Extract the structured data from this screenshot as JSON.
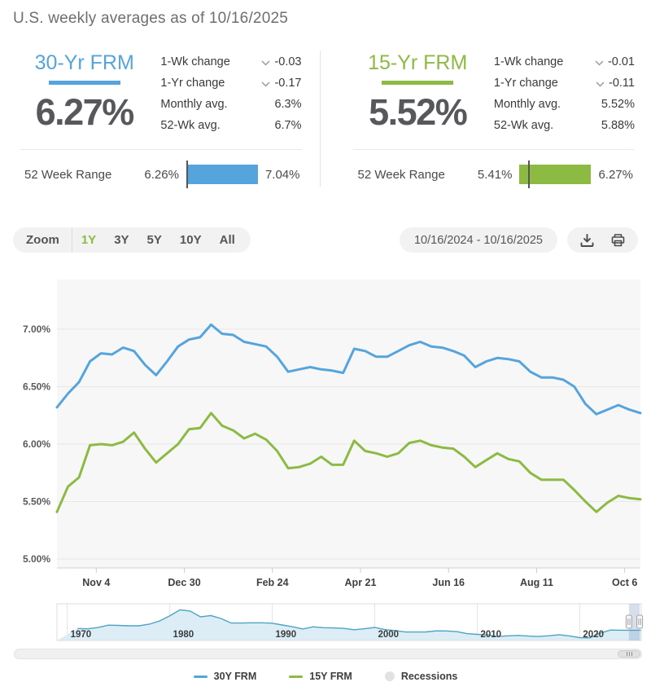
{
  "title": "U.S. weekly averages as of 10/16/2025",
  "cards": [
    {
      "name": "30-Yr FRM",
      "color": "#55A5DC",
      "rate": "6.27%",
      "stats": [
        {
          "label": "1-Wk change",
          "direction": "down",
          "value": "-0.03"
        },
        {
          "label": "1-Yr change",
          "direction": "down",
          "value": "-0.17"
        },
        {
          "label": "Monthly avg.",
          "value": "6.3%"
        },
        {
          "label": "52-Wk avg.",
          "value": "6.7%"
        }
      ],
      "range": {
        "label": "52 Week Range",
        "low_label": "6.26%",
        "high_label": "7.04%",
        "low": 6.26,
        "high": 7.04,
        "current": 6.27
      }
    },
    {
      "name": "15-Yr FRM",
      "color": "#8CBA43",
      "rate": "5.52%",
      "stats": [
        {
          "label": "1-Wk change",
          "direction": "down",
          "value": "-0.01"
        },
        {
          "label": "1-Yr change",
          "direction": "down",
          "value": "-0.11"
        },
        {
          "label": "Monthly avg.",
          "value": "5.52%"
        },
        {
          "label": "52-Wk avg.",
          "value": "5.88%"
        }
      ],
      "range": {
        "label": "52 Week Range",
        "low_label": "5.41%",
        "high_label": "6.27%",
        "low": 5.41,
        "high": 6.27,
        "current": 5.52
      }
    }
  ],
  "toolbar": {
    "zoom_label": "Zoom",
    "ranges": [
      {
        "label": "1Y",
        "active": true
      },
      {
        "label": "3Y",
        "active": false
      },
      {
        "label": "5Y",
        "active": false
      },
      {
        "label": "10Y",
        "active": false
      },
      {
        "label": "All",
        "active": false
      }
    ],
    "date_range": "10/16/2024 - 10/16/2025"
  },
  "chart_data": {
    "type": "line",
    "x_start": "2024-10-10",
    "x_end": "2025-10-16",
    "step_days": 7,
    "ylim": [
      5.0,
      7.25
    ],
    "y_ticks": [
      7.0,
      6.5,
      6.0,
      5.5,
      5.0
    ],
    "x_ticks": [
      {
        "label": "Nov 4",
        "date": "2024-11-04"
      },
      {
        "label": "Dec 30",
        "date": "2024-12-30"
      },
      {
        "label": "Feb 24",
        "date": "2025-02-24"
      },
      {
        "label": "Apr 21",
        "date": "2025-04-21"
      },
      {
        "label": "Jun 16",
        "date": "2025-06-16"
      },
      {
        "label": "Aug 11",
        "date": "2025-08-11"
      },
      {
        "label": "Oct 6",
        "date": "2025-10-06"
      }
    ],
    "series": [
      {
        "name": "30Y FRM",
        "color": "#55A5DC",
        "values": [
          6.32,
          6.44,
          6.54,
          6.72,
          6.79,
          6.78,
          6.84,
          6.81,
          6.69,
          6.6,
          6.72,
          6.85,
          6.91,
          6.93,
          7.04,
          6.96,
          6.95,
          6.89,
          6.87,
          6.85,
          6.76,
          6.63,
          6.65,
          6.67,
          6.65,
          6.64,
          6.62,
          6.83,
          6.81,
          6.76,
          6.76,
          6.81,
          6.86,
          6.89,
          6.85,
          6.84,
          6.81,
          6.77,
          6.67,
          6.72,
          6.75,
          6.74,
          6.72,
          6.63,
          6.58,
          6.58,
          6.56,
          6.5,
          6.35,
          6.26,
          6.3,
          6.34,
          6.3,
          6.27
        ]
      },
      {
        "name": "15Y FRM",
        "color": "#8CBA43",
        "values": [
          5.41,
          5.63,
          5.71,
          5.99,
          6.0,
          5.99,
          6.02,
          6.1,
          5.96,
          5.84,
          5.92,
          6.0,
          6.13,
          6.14,
          6.27,
          6.16,
          6.12,
          6.05,
          6.09,
          6.04,
          5.94,
          5.79,
          5.8,
          5.83,
          5.89,
          5.82,
          5.82,
          6.03,
          5.94,
          5.92,
          5.89,
          5.92,
          6.01,
          6.03,
          5.99,
          5.97,
          5.96,
          5.89,
          5.8,
          5.86,
          5.92,
          5.87,
          5.85,
          5.75,
          5.69,
          5.69,
          5.69,
          5.6,
          5.5,
          5.41,
          5.49,
          5.55,
          5.53,
          5.52
        ]
      }
    ]
  },
  "navigator": {
    "decades": [
      {
        "label": "1970",
        "year": 1970
      },
      {
        "label": "1980",
        "year": 1980
      },
      {
        "label": "1990",
        "year": 1990
      },
      {
        "label": "2000",
        "year": 2000
      },
      {
        "label": "2010",
        "year": 2010
      },
      {
        "label": "2020",
        "year": 2020
      }
    ],
    "year_start": 1971,
    "values": [
      7.54,
      7.38,
      8.04,
      9.19,
      9.05,
      8.87,
      8.85,
      9.64,
      11.2,
      13.74,
      16.63,
      16.04,
      13.24,
      13.88,
      12.43,
      10.19,
      10.21,
      10.34,
      10.32,
      10.13,
      9.25,
      8.39,
      7.31,
      8.38,
      7.93,
      7.81,
      7.6,
      6.94,
      7.44,
      8.05,
      6.97,
      6.54,
      5.83,
      5.84,
      5.87,
      6.41,
      6.34,
      6.03,
      5.04,
      4.69,
      4.45,
      3.66,
      3.98,
      4.17,
      3.85,
      3.65,
      3.99,
      4.54,
      3.94,
      3.11,
      2.96,
      5.34,
      6.81,
      6.72,
      6.7
    ],
    "window": {
      "from_year": 2024.8,
      "to_year": 2025.85
    }
  },
  "legend": [
    {
      "label": "30Y FRM",
      "color": "#55A5DC",
      "type": "line"
    },
    {
      "label": "15Y FRM",
      "color": "#8CBA43",
      "type": "line"
    },
    {
      "label": "Recessions",
      "color": "#E2E2E2",
      "type": "circle"
    }
  ]
}
